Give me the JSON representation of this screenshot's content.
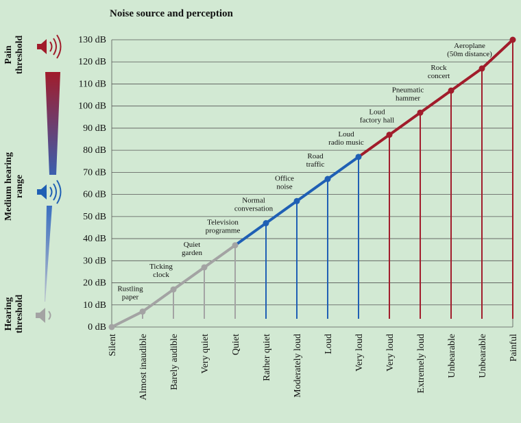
{
  "chart_data": {
    "type": "line",
    "title": "Noise source and perception",
    "categories": [
      "Silent",
      "Almost inaudible",
      "Barely audible",
      "Very quiet",
      "Quiet",
      "Rather quiet",
      "Moderately loud",
      "Loud",
      "Very loud",
      "Very loud",
      "Extremely loud",
      "Unbearable",
      "Unbearable",
      "Painful"
    ],
    "values": [
      0,
      7,
      17,
      27,
      37,
      47,
      57,
      67,
      77,
      87,
      97,
      107,
      117,
      130
    ],
    "point_colors": [
      "#a3a3a3",
      "#a3a3a3",
      "#a3a3a3",
      "#a3a3a3",
      "#a3a3a3",
      "#1f5fb4",
      "#1f5fb4",
      "#1f5fb4",
      "#1f5fb4",
      "#a11c2b",
      "#a11c2b",
      "#a11c2b",
      "#a11c2b",
      "#a11c2b"
    ],
    "annotations": [
      null,
      [
        "Rustling",
        "paper"
      ],
      [
        "Ticking",
        "clock"
      ],
      [
        "Quiet",
        "garden"
      ],
      [
        "Television",
        "programme"
      ],
      [
        "Normal",
        "conversation"
      ],
      [
        "Office",
        "noise"
      ],
      [
        "Road",
        "traffic"
      ],
      [
        "Loud",
        "radio music"
      ],
      [
        "Loud",
        "factory hall"
      ],
      [
        "Pneumatic",
        "hammer"
      ],
      [
        "Rock",
        "concert"
      ],
      [
        "Aeroplane",
        "(50m distance)"
      ],
      null
    ],
    "ylim": [
      0,
      130
    ],
    "yticks": [
      {
        "value": 0,
        "label": "0 dB"
      },
      {
        "value": 10,
        "label": "10 dB"
      },
      {
        "value": 20,
        "label": "20 dB"
      },
      {
        "value": 30,
        "label": "30 dB"
      },
      {
        "value": 40,
        "label": "40 dB"
      },
      {
        "value": 50,
        "label": "50 dB"
      },
      {
        "value": 60,
        "label": "60 dB"
      },
      {
        "value": 70,
        "label": "70 dB"
      },
      {
        "value": 80,
        "label": "80 dB"
      },
      {
        "value": 90,
        "label": "90 dB"
      },
      {
        "value": 100,
        "label": "100 dB"
      },
      {
        "value": 110,
        "label": "110 dB"
      },
      {
        "value": 120,
        "label": "120 dB"
      },
      {
        "value": 130,
        "label": "130 dB"
      }
    ],
    "grid": true,
    "side_labels": [
      [
        "Pain",
        "threshold"
      ],
      [
        "Medium hearing",
        "range"
      ],
      [
        "Hearing",
        "threshold"
      ]
    ]
  }
}
